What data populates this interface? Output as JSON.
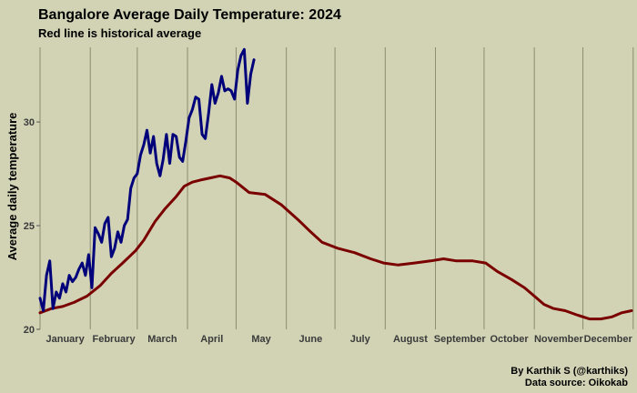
{
  "chart_data": {
    "type": "line",
    "title": "Bangalore Average Daily Temperature: 2024",
    "subtitle": "Red line is historical average",
    "ylabel": "Average daily temperature",
    "xlabel": "",
    "x_tick_labels": [
      "January",
      "February",
      "March",
      "April",
      "May",
      "June",
      "July",
      "August",
      "September",
      "October",
      "November",
      "December"
    ],
    "y_ticks": [
      20,
      25,
      30
    ],
    "ylim": [
      20,
      33.6
    ],
    "xlim": [
      1,
      366
    ],
    "grid": "vertical lines at month starts",
    "caption_lines": [
      "By Karthik S (@karthiks)",
      "Data source: Oikokab"
    ],
    "series": [
      {
        "name": "Historical average",
        "color": "#7a0000",
        "points": [
          [
            1,
            20.8
          ],
          [
            8,
            21.0
          ],
          [
            15,
            21.1
          ],
          [
            22,
            21.3
          ],
          [
            30,
            21.6
          ],
          [
            38,
            22.1
          ],
          [
            45,
            22.7
          ],
          [
            52,
            23.2
          ],
          [
            60,
            23.8
          ],
          [
            65,
            24.3
          ],
          [
            72,
            25.2
          ],
          [
            78,
            25.8
          ],
          [
            85,
            26.4
          ],
          [
            90,
            26.9
          ],
          [
            95,
            27.1
          ],
          [
            100,
            27.2
          ],
          [
            106,
            27.3
          ],
          [
            112,
            27.4
          ],
          [
            118,
            27.3
          ],
          [
            122,
            27.1
          ],
          [
            130,
            26.6
          ],
          [
            140,
            26.5
          ],
          [
            150,
            26.0
          ],
          [
            160,
            25.3
          ],
          [
            168,
            24.7
          ],
          [
            175,
            24.2
          ],
          [
            185,
            23.9
          ],
          [
            195,
            23.7
          ],
          [
            205,
            23.4
          ],
          [
            213,
            23.2
          ],
          [
            222,
            23.1
          ],
          [
            232,
            23.2
          ],
          [
            242,
            23.3
          ],
          [
            250,
            23.4
          ],
          [
            258,
            23.3
          ],
          [
            268,
            23.3
          ],
          [
            276,
            23.2
          ],
          [
            283,
            22.8
          ],
          [
            292,
            22.4
          ],
          [
            300,
            22.0
          ],
          [
            306,
            21.6
          ],
          [
            312,
            21.2
          ],
          [
            318,
            21.0
          ],
          [
            325,
            20.9
          ],
          [
            332,
            20.7
          ],
          [
            340,
            20.5
          ],
          [
            347,
            20.5
          ],
          [
            354,
            20.6
          ],
          [
            360,
            20.8
          ],
          [
            366,
            20.9
          ]
        ]
      },
      {
        "name": "2024",
        "color": "#00007a",
        "points": [
          [
            1,
            21.5
          ],
          [
            3,
            20.9
          ],
          [
            5,
            22.6
          ],
          [
            7,
            23.3
          ],
          [
            9,
            21.0
          ],
          [
            11,
            21.8
          ],
          [
            13,
            21.5
          ],
          [
            15,
            22.2
          ],
          [
            17,
            21.8
          ],
          [
            19,
            22.6
          ],
          [
            21,
            22.3
          ],
          [
            23,
            22.5
          ],
          [
            25,
            22.9
          ],
          [
            27,
            23.2
          ],
          [
            29,
            22.6
          ],
          [
            31,
            23.6
          ],
          [
            33,
            22.0
          ],
          [
            35,
            24.9
          ],
          [
            37,
            24.6
          ],
          [
            39,
            24.2
          ],
          [
            41,
            25.1
          ],
          [
            43,
            25.4
          ],
          [
            45,
            23.5
          ],
          [
            47,
            23.9
          ],
          [
            49,
            24.7
          ],
          [
            51,
            24.2
          ],
          [
            53,
            25.0
          ],
          [
            55,
            25.3
          ],
          [
            57,
            26.8
          ],
          [
            59,
            27.3
          ],
          [
            61,
            27.5
          ],
          [
            63,
            28.4
          ],
          [
            65,
            28.9
          ],
          [
            67,
            29.6
          ],
          [
            69,
            28.5
          ],
          [
            71,
            29.3
          ],
          [
            73,
            28.0
          ],
          [
            75,
            27.4
          ],
          [
            77,
            28.2
          ],
          [
            79,
            29.4
          ],
          [
            81,
            28.0
          ],
          [
            83,
            29.4
          ],
          [
            85,
            29.3
          ],
          [
            87,
            28.3
          ],
          [
            89,
            28.1
          ],
          [
            91,
            29.1
          ],
          [
            93,
            30.2
          ],
          [
            95,
            30.6
          ],
          [
            97,
            31.2
          ],
          [
            99,
            31.1
          ],
          [
            101,
            29.4
          ],
          [
            103,
            29.2
          ],
          [
            105,
            30.4
          ],
          [
            107,
            31.8
          ],
          [
            109,
            30.9
          ],
          [
            111,
            31.4
          ],
          [
            113,
            32.2
          ],
          [
            115,
            31.5
          ],
          [
            117,
            31.6
          ],
          [
            119,
            31.5
          ],
          [
            121,
            31.1
          ],
          [
            123,
            32.5
          ],
          [
            125,
            33.2
          ],
          [
            127,
            33.5
          ],
          [
            129,
            30.9
          ],
          [
            131,
            32.3
          ],
          [
            133,
            33.0
          ]
        ]
      }
    ]
  }
}
